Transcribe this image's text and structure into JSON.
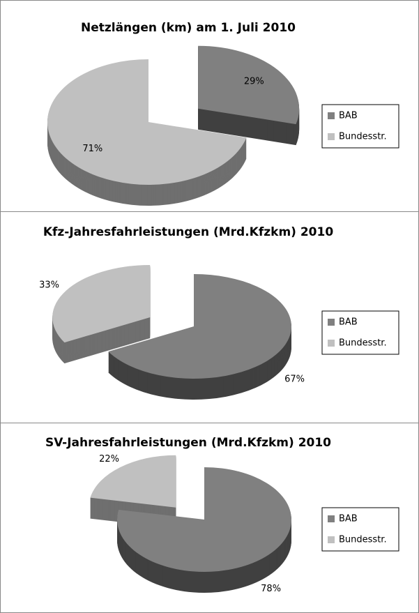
{
  "chart_data": [
    {
      "type": "pie",
      "title": "Netzlängen (km) am 1. Juli 2010",
      "categories": [
        "BAB",
        "Bundesstr."
      ],
      "values": [
        29,
        71
      ],
      "value_labels": [
        "29%",
        "71%"
      ],
      "colors": [
        "#808080",
        "#c0c0c0"
      ],
      "legend": "right"
    },
    {
      "type": "pie",
      "title": "Kfz-Jahresfahrleistungen (Mrd.Kfzkm) 2010",
      "categories": [
        "BAB",
        "Bundesstr."
      ],
      "values": [
        67,
        33
      ],
      "value_labels": [
        "67%",
        "33%"
      ],
      "colors": [
        "#808080",
        "#c0c0c0"
      ],
      "legend": "right"
    },
    {
      "type": "pie",
      "title": "SV-Jahresfahrleistungen (Mrd.Kfzkm) 2010",
      "categories": [
        "BAB",
        "Bundesstr."
      ],
      "values": [
        78,
        22
      ],
      "value_labels": [
        "78%",
        "22%"
      ],
      "colors": [
        "#808080",
        "#c0c0c0"
      ],
      "legend": "right"
    }
  ]
}
